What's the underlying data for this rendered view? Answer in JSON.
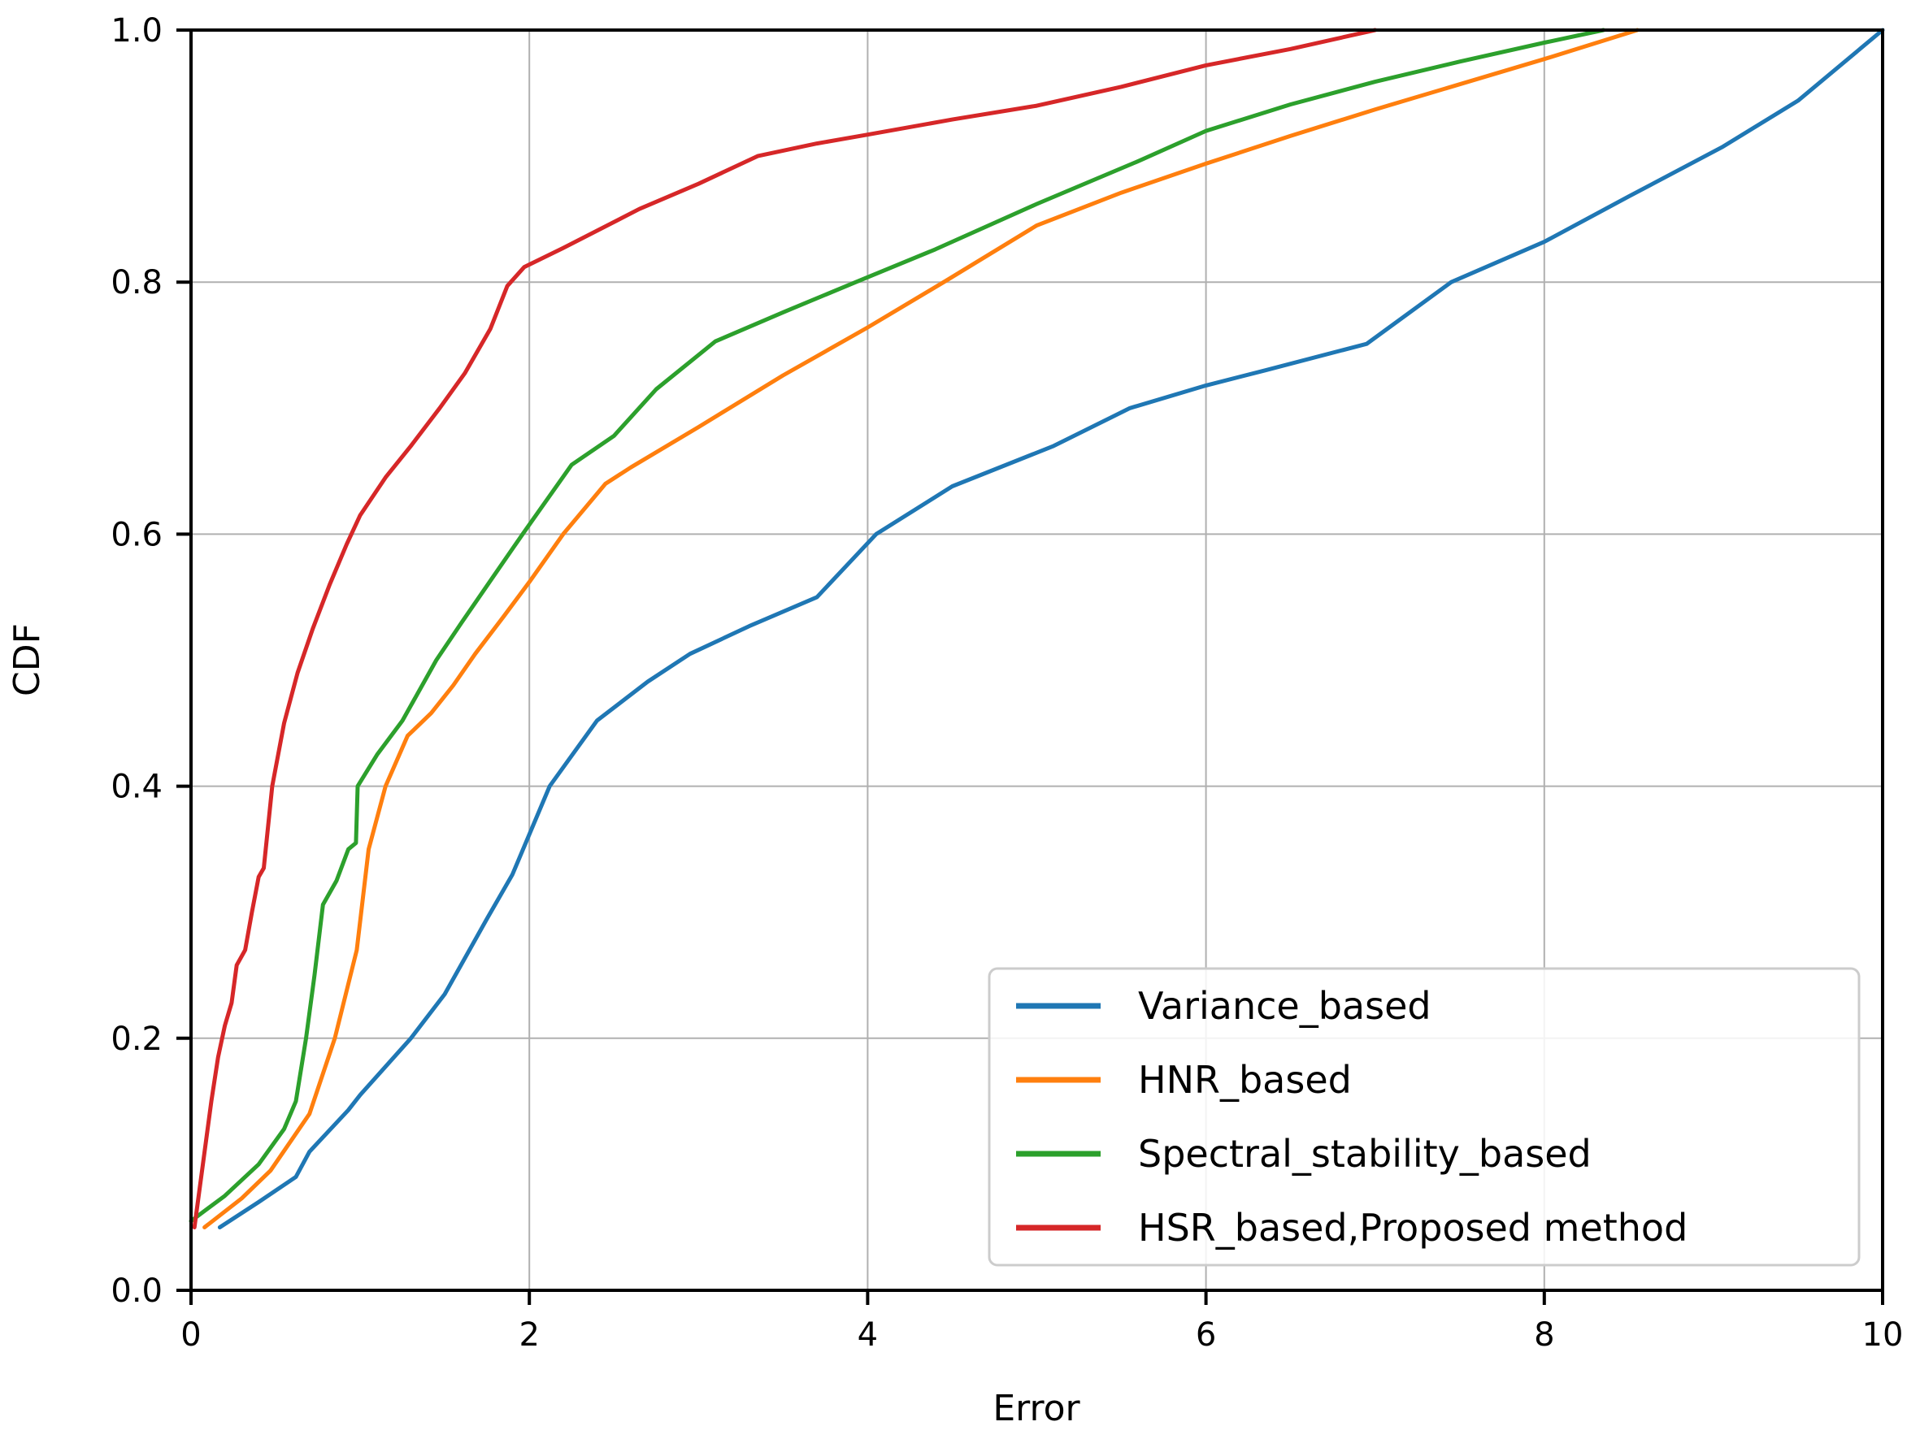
{
  "chart_data": {
    "type": "line",
    "title": "",
    "xlabel": "Error",
    "ylabel": "CDF",
    "xlim": [
      0,
      10
    ],
    "ylim": [
      0.0,
      1.0
    ],
    "xticks": [
      0,
      2,
      4,
      6,
      8,
      10
    ],
    "xtick_labels": [
      "0",
      "2",
      "4",
      "6",
      "8",
      "10"
    ],
    "yticks": [
      0.0,
      0.2,
      0.4,
      0.6,
      0.8,
      1.0
    ],
    "ytick_labels": [
      "0.0",
      "0.2",
      "0.4",
      "0.6",
      "0.8",
      "1.0"
    ],
    "grid": true,
    "legend_position": "lower right",
    "colors": {
      "grid": "#b0b0b0",
      "spine": "#000000",
      "legend_border": "#cccccc",
      "legend_background": "#ffffff",
      "tick_text": "#000000"
    },
    "series": [
      {
        "name": "Variance_based",
        "color": "#1f77b4",
        "points": [
          [
            0.17,
            0.05
          ],
          [
            0.4,
            0.07
          ],
          [
            0.62,
            0.09
          ],
          [
            0.7,
            0.11
          ],
          [
            0.93,
            0.143
          ],
          [
            1.0,
            0.155
          ],
          [
            1.3,
            0.2
          ],
          [
            1.5,
            0.235
          ],
          [
            1.75,
            0.295
          ],
          [
            1.9,
            0.33
          ],
          [
            2.12,
            0.4
          ],
          [
            2.4,
            0.452
          ],
          [
            2.7,
            0.483
          ],
          [
            2.95,
            0.505
          ],
          [
            3.3,
            0.527
          ],
          [
            3.7,
            0.55
          ],
          [
            4.05,
            0.6
          ],
          [
            4.5,
            0.638
          ],
          [
            5.1,
            0.67
          ],
          [
            5.55,
            0.7
          ],
          [
            6.0,
            0.718
          ],
          [
            6.35,
            0.73
          ],
          [
            6.95,
            0.751
          ],
          [
            7.45,
            0.8
          ],
          [
            8.0,
            0.832
          ],
          [
            8.5,
            0.868
          ],
          [
            9.05,
            0.907
          ],
          [
            9.5,
            0.944
          ],
          [
            10.0,
            1.0
          ]
        ]
      },
      {
        "name": "HNR_based",
        "color": "#ff7f0e",
        "points": [
          [
            0.08,
            0.05
          ],
          [
            0.3,
            0.073
          ],
          [
            0.47,
            0.095
          ],
          [
            0.7,
            0.14
          ],
          [
            0.85,
            0.2
          ],
          [
            0.98,
            0.27
          ],
          [
            1.05,
            0.35
          ],
          [
            1.15,
            0.4
          ],
          [
            1.28,
            0.44
          ],
          [
            1.42,
            0.458
          ],
          [
            1.55,
            0.48
          ],
          [
            1.68,
            0.505
          ],
          [
            1.85,
            0.535
          ],
          [
            2.0,
            0.562
          ],
          [
            2.2,
            0.6
          ],
          [
            2.45,
            0.64
          ],
          [
            2.6,
            0.653
          ],
          [
            3.0,
            0.685
          ],
          [
            3.5,
            0.726
          ],
          [
            4.0,
            0.764
          ],
          [
            4.45,
            0.8
          ],
          [
            5.0,
            0.845
          ],
          [
            5.5,
            0.871
          ],
          [
            6.0,
            0.894
          ],
          [
            6.5,
            0.916
          ],
          [
            7.0,
            0.937
          ],
          [
            7.5,
            0.957
          ],
          [
            8.0,
            0.977
          ],
          [
            8.55,
            1.0
          ]
        ]
      },
      {
        "name": "Spectral_stability_based",
        "color": "#2ca02c",
        "points": [
          [
            0.0,
            0.055
          ],
          [
            0.2,
            0.075
          ],
          [
            0.4,
            0.1
          ],
          [
            0.55,
            0.128
          ],
          [
            0.62,
            0.15
          ],
          [
            0.68,
            0.2
          ],
          [
            0.73,
            0.25
          ],
          [
            0.78,
            0.306
          ],
          [
            0.86,
            0.325
          ],
          [
            0.93,
            0.35
          ],
          [
            0.975,
            0.355
          ],
          [
            0.985,
            0.4
          ],
          [
            1.1,
            0.425
          ],
          [
            1.25,
            0.452
          ],
          [
            1.45,
            0.5
          ],
          [
            1.6,
            0.53
          ],
          [
            1.78,
            0.565
          ],
          [
            1.96,
            0.6
          ],
          [
            2.25,
            0.655
          ],
          [
            2.5,
            0.678
          ],
          [
            2.75,
            0.715
          ],
          [
            3.1,
            0.753
          ],
          [
            3.5,
            0.776
          ],
          [
            3.93,
            0.8
          ],
          [
            4.4,
            0.826
          ],
          [
            5.0,
            0.862
          ],
          [
            5.6,
            0.896
          ],
          [
            6.0,
            0.92
          ],
          [
            6.5,
            0.941
          ],
          [
            7.0,
            0.959
          ],
          [
            7.5,
            0.975
          ],
          [
            8.0,
            0.99
          ],
          [
            8.35,
            1.0
          ]
        ]
      },
      {
        "name": "HSR_based,Proposed method",
        "color": "#d62728",
        "points": [
          [
            0.02,
            0.05
          ],
          [
            0.07,
            0.1
          ],
          [
            0.12,
            0.15
          ],
          [
            0.16,
            0.185
          ],
          [
            0.2,
            0.21
          ],
          [
            0.24,
            0.228
          ],
          [
            0.27,
            0.258
          ],
          [
            0.32,
            0.27
          ],
          [
            0.36,
            0.3
          ],
          [
            0.4,
            0.328
          ],
          [
            0.43,
            0.335
          ],
          [
            0.48,
            0.4
          ],
          [
            0.55,
            0.45
          ],
          [
            0.63,
            0.49
          ],
          [
            0.72,
            0.525
          ],
          [
            0.82,
            0.56
          ],
          [
            0.92,
            0.592
          ],
          [
            1.0,
            0.615
          ],
          [
            1.15,
            0.645
          ],
          [
            1.3,
            0.67
          ],
          [
            1.47,
            0.7
          ],
          [
            1.62,
            0.728
          ],
          [
            1.77,
            0.763
          ],
          [
            1.87,
            0.797
          ],
          [
            1.97,
            0.812
          ],
          [
            2.2,
            0.827
          ],
          [
            2.65,
            0.858
          ],
          [
            3.0,
            0.878
          ],
          [
            3.35,
            0.9
          ],
          [
            3.7,
            0.91
          ],
          [
            4.0,
            0.917
          ],
          [
            4.5,
            0.929
          ],
          [
            5.0,
            0.94
          ],
          [
            5.5,
            0.955
          ],
          [
            6.0,
            0.972
          ],
          [
            6.5,
            0.985
          ],
          [
            7.0,
            1.0
          ]
        ]
      }
    ],
    "legend_entries": [
      "Variance_based",
      "HNR_based",
      "Spectral_stability_based",
      "HSR_based,Proposed method"
    ]
  }
}
